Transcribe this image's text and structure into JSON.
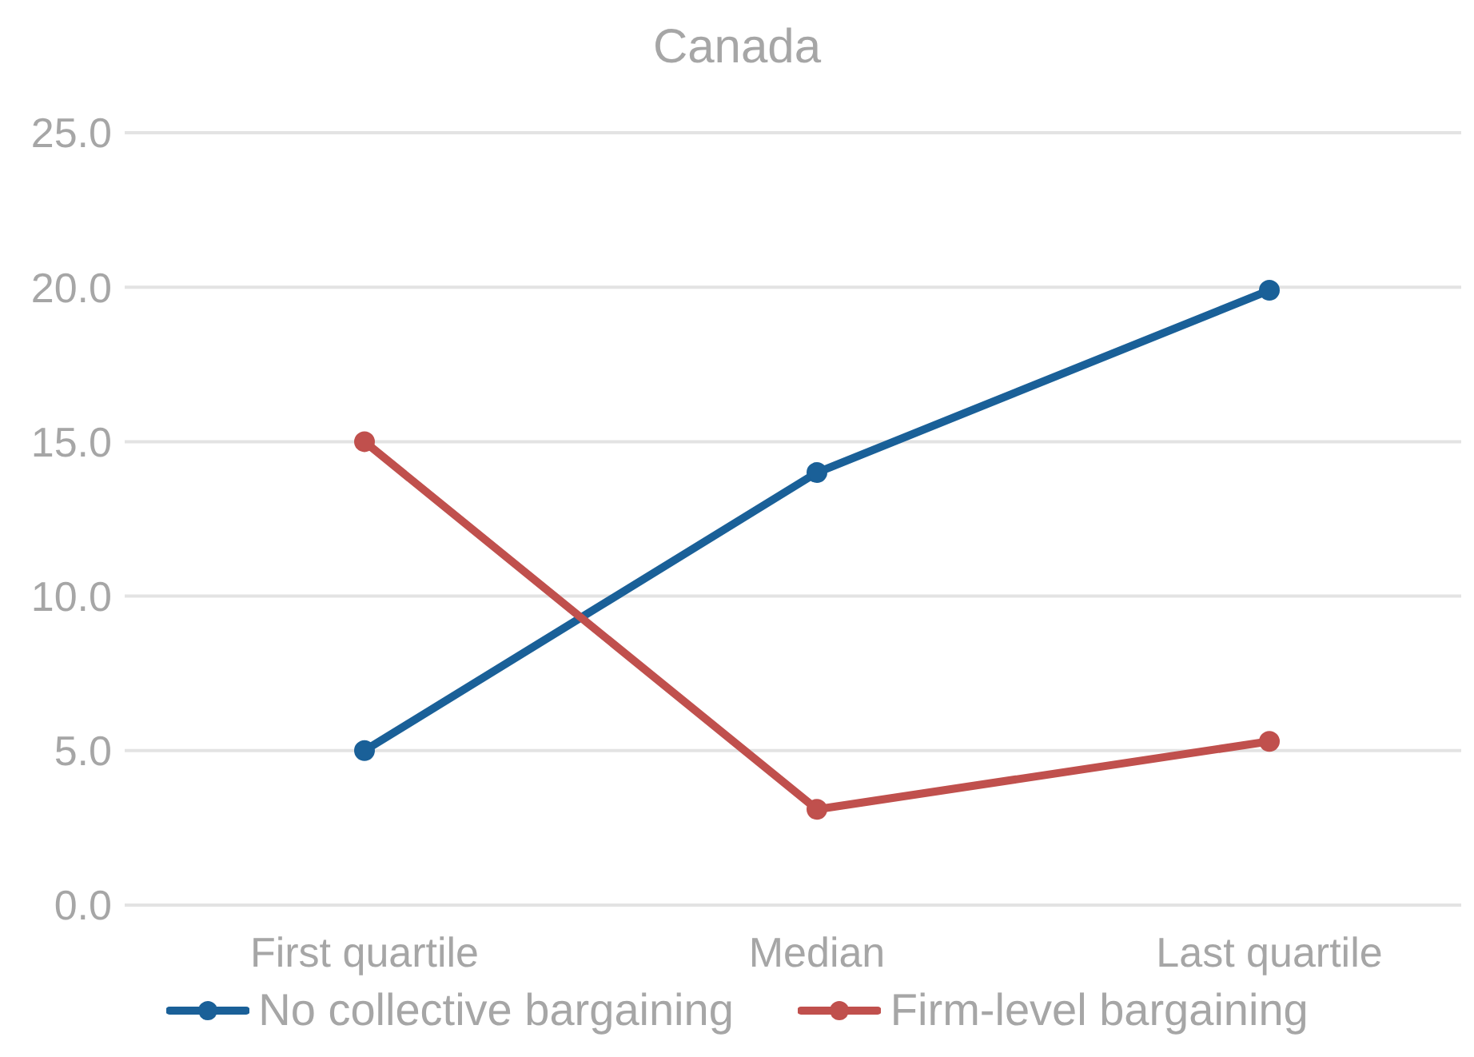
{
  "chart_data": {
    "type": "line",
    "title": "Canada",
    "categories": [
      "First quartile",
      "Median",
      "Last quartile"
    ],
    "series": [
      {
        "name": "No collective bargaining",
        "color": "#1a6098",
        "values": [
          5.0,
          14.0,
          19.9
        ]
      },
      {
        "name": "Firm-level bargaining",
        "color": "#c0504d",
        "values": [
          15.0,
          3.1,
          5.3
        ]
      }
    ],
    "ylim": [
      0,
      25
    ],
    "yticks": [
      {
        "value": 0,
        "label": "0.0"
      },
      {
        "value": 5,
        "label": "5.0"
      },
      {
        "value": 10,
        "label": "10.0"
      },
      {
        "value": 15,
        "label": "15.0"
      },
      {
        "value": 20,
        "label": "20.0"
      },
      {
        "value": 25,
        "label": "25.0"
      }
    ],
    "grid": "y",
    "legend": "bottom",
    "marker": "circle",
    "line_style": "solid"
  }
}
